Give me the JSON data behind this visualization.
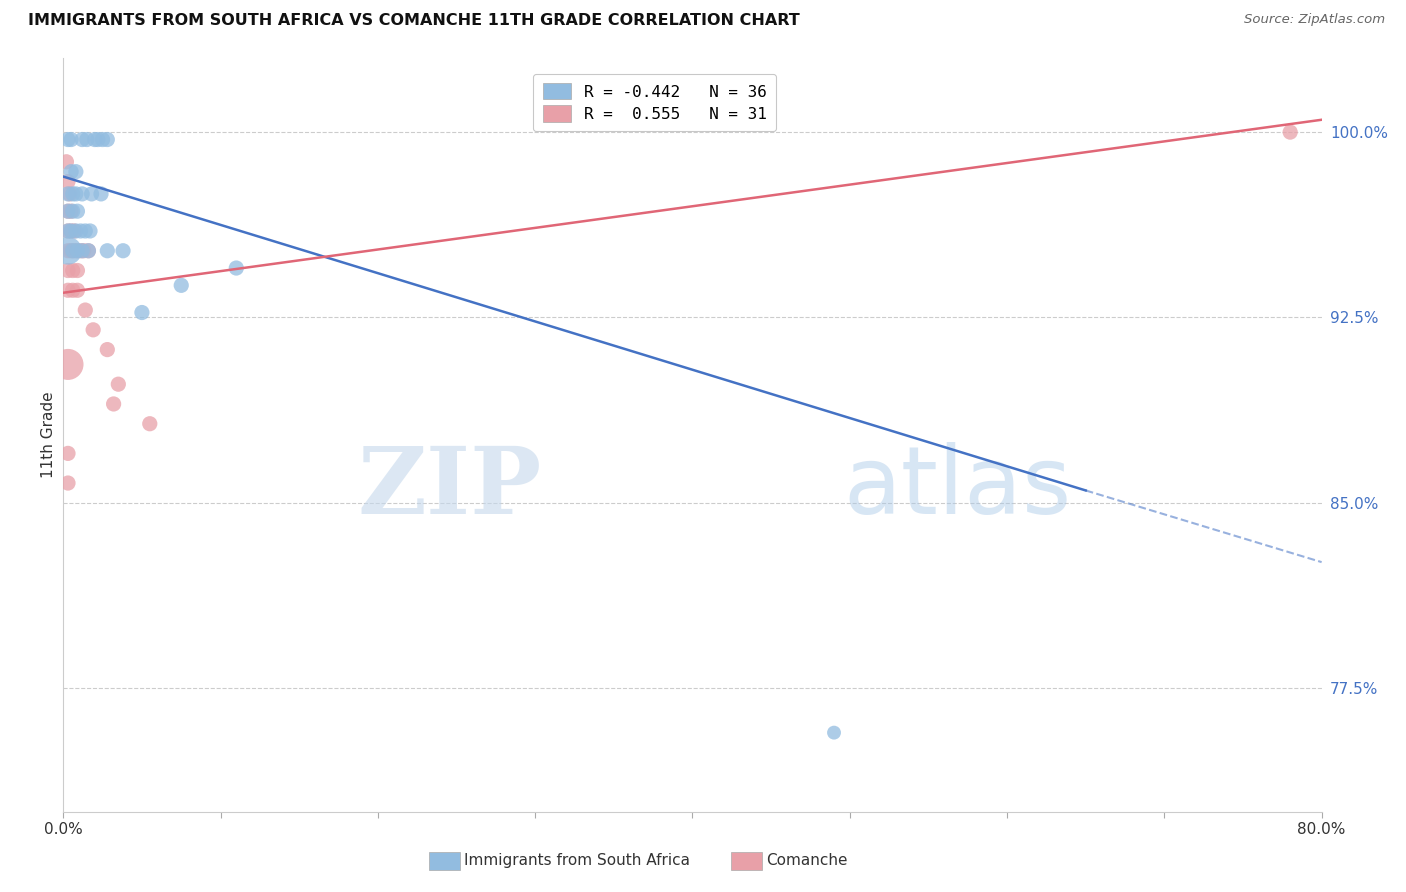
{
  "title": "IMMIGRANTS FROM SOUTH AFRICA VS COMANCHE 11TH GRADE CORRELATION CHART",
  "source": "Source: ZipAtlas.com",
  "ylabel": "11th Grade",
  "x_min": 0.0,
  "x_max": 0.8,
  "y_min": 0.725,
  "y_max": 1.03,
  "yticks": [
    0.775,
    0.85,
    0.925,
    1.0
  ],
  "ytick_labels": [
    "77.5%",
    "85.0%",
    "92.5%",
    "100.0%"
  ],
  "xticks": [
    0.0,
    0.1,
    0.2,
    0.3,
    0.4,
    0.5,
    0.6,
    0.7,
    0.8
  ],
  "xtick_labels": [
    "0.0%",
    "",
    "",
    "",
    "",
    "",
    "",
    "",
    "80.0%"
  ],
  "legend_label_blue": "R = -0.442   N = 36",
  "legend_label_pink": "R =  0.555   N = 31",
  "blue_color": "#92bce0",
  "pink_color": "#e8a0a8",
  "trend_blue": "#4472c4",
  "trend_pink": "#e06676",
  "watermark_zip": "ZIP",
  "watermark_atlas": "atlas",
  "blue_scatter": [
    [
      0.003,
      0.997
    ],
    [
      0.005,
      0.997
    ],
    [
      0.012,
      0.997
    ],
    [
      0.015,
      0.997
    ],
    [
      0.02,
      0.997
    ],
    [
      0.022,
      0.997
    ],
    [
      0.025,
      0.997
    ],
    [
      0.028,
      0.997
    ],
    [
      0.005,
      0.984
    ],
    [
      0.008,
      0.984
    ],
    [
      0.003,
      0.975
    ],
    [
      0.006,
      0.975
    ],
    [
      0.008,
      0.975
    ],
    [
      0.012,
      0.975
    ],
    [
      0.018,
      0.975
    ],
    [
      0.024,
      0.975
    ],
    [
      0.003,
      0.968
    ],
    [
      0.006,
      0.968
    ],
    [
      0.009,
      0.968
    ],
    [
      0.003,
      0.96
    ],
    [
      0.005,
      0.96
    ],
    [
      0.008,
      0.96
    ],
    [
      0.011,
      0.96
    ],
    [
      0.014,
      0.96
    ],
    [
      0.017,
      0.96
    ],
    [
      0.003,
      0.952
    ],
    [
      0.006,
      0.952
    ],
    [
      0.009,
      0.952
    ],
    [
      0.012,
      0.952
    ],
    [
      0.016,
      0.952
    ],
    [
      0.028,
      0.952
    ],
    [
      0.038,
      0.952
    ],
    [
      0.11,
      0.945
    ],
    [
      0.075,
      0.938
    ],
    [
      0.05,
      0.927
    ],
    [
      0.49,
      0.757
    ]
  ],
  "blue_sizes": [
    120,
    120,
    120,
    120,
    120,
    120,
    120,
    120,
    120,
    120,
    120,
    120,
    120,
    120,
    120,
    120,
    120,
    120,
    120,
    120,
    120,
    120,
    120,
    120,
    120,
    400,
    120,
    120,
    120,
    120,
    120,
    120,
    120,
    120,
    120,
    100
  ],
  "pink_scatter": [
    [
      0.002,
      0.988
    ],
    [
      0.003,
      0.98
    ],
    [
      0.004,
      0.975
    ],
    [
      0.003,
      0.968
    ],
    [
      0.005,
      0.968
    ],
    [
      0.003,
      0.96
    ],
    [
      0.005,
      0.96
    ],
    [
      0.007,
      0.96
    ],
    [
      0.003,
      0.952
    ],
    [
      0.005,
      0.952
    ],
    [
      0.007,
      0.952
    ],
    [
      0.009,
      0.952
    ],
    [
      0.011,
      0.952
    ],
    [
      0.013,
      0.952
    ],
    [
      0.016,
      0.952
    ],
    [
      0.003,
      0.944
    ],
    [
      0.006,
      0.944
    ],
    [
      0.009,
      0.944
    ],
    [
      0.003,
      0.936
    ],
    [
      0.006,
      0.936
    ],
    [
      0.009,
      0.936
    ],
    [
      0.014,
      0.928
    ],
    [
      0.019,
      0.92
    ],
    [
      0.028,
      0.912
    ],
    [
      0.003,
      0.906
    ],
    [
      0.035,
      0.898
    ],
    [
      0.032,
      0.89
    ],
    [
      0.055,
      0.882
    ],
    [
      0.003,
      0.87
    ],
    [
      0.003,
      0.858
    ],
    [
      0.78,
      1.0
    ]
  ],
  "pink_sizes": [
    120,
    120,
    120,
    120,
    120,
    120,
    120,
    120,
    120,
    120,
    120,
    120,
    120,
    120,
    120,
    120,
    120,
    120,
    120,
    120,
    120,
    120,
    120,
    120,
    500,
    120,
    120,
    120,
    120,
    120,
    120
  ],
  "blue_line_x0": 0.0,
  "blue_line_y0": 0.982,
  "blue_line_x1": 0.65,
  "blue_line_y1": 0.855,
  "blue_line_x2": 0.8,
  "blue_line_y2": 0.826,
  "pink_line_x0": 0.0,
  "pink_line_y0": 0.935,
  "pink_line_x1": 0.8,
  "pink_line_y1": 1.005
}
